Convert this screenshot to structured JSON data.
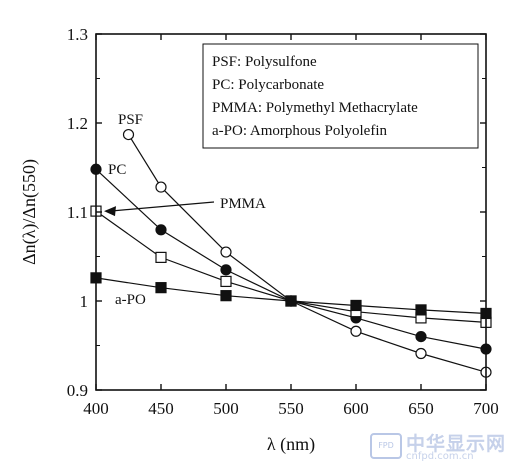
{
  "chart_data": {
    "type": "line",
    "xlabel": "λ (nm)",
    "ylabel": "Δn(λ)/Δn(550)",
    "xlim": [
      400,
      700
    ],
    "ylim": [
      0.9,
      1.3
    ],
    "x_ticks": [
      400,
      450,
      500,
      550,
      600,
      650,
      700
    ],
    "y_ticks": [
      0.9,
      1,
      1.1,
      1.2,
      1.3
    ],
    "x_tick_labels": [
      "400",
      "450",
      "500",
      "550",
      "600",
      "650",
      "700"
    ],
    "y_tick_labels": [
      "0.9",
      "1",
      "1.1",
      "1.2",
      "1.3"
    ],
    "grid": false,
    "legend": {
      "placement": "top-right",
      "entries": [
        "PSF: Polysulfone",
        "PC: Polycarbonate",
        "PMMA: Polymethyl Methacrylate",
        "a-PO: Amorphous Polyolefin"
      ]
    },
    "series": [
      {
        "name": "PSF",
        "marker": "open-circle",
        "x": [
          425,
          450,
          500,
          550,
          600,
          650,
          700
        ],
        "y": [
          1.187,
          1.128,
          1.055,
          1.0,
          0.966,
          0.941,
          0.92
        ]
      },
      {
        "name": "PC",
        "marker": "filled-circle",
        "x": [
          400,
          450,
          500,
          550,
          600,
          650,
          700
        ],
        "y": [
          1.148,
          1.08,
          1.035,
          1.0,
          0.981,
          0.96,
          0.946
        ]
      },
      {
        "name": "PMMA",
        "marker": "open-square",
        "x": [
          400,
          450,
          500,
          550,
          600,
          650,
          700
        ],
        "y": [
          1.101,
          1.049,
          1.022,
          1.0,
          0.988,
          0.981,
          0.976
        ]
      },
      {
        "name": "a-PO",
        "marker": "filled-square",
        "x": [
          400,
          450,
          500,
          550,
          600,
          650,
          700
        ],
        "y": [
          1.026,
          1.015,
          1.006,
          1.0,
          0.995,
          0.99,
          0.986
        ]
      }
    ],
    "annotations": [
      {
        "text": "PSF",
        "series": "PSF"
      },
      {
        "text": "PC",
        "series": "PC"
      },
      {
        "text": "PMMA",
        "series": "PMMA",
        "arrow_to": [
          400,
          1.101
        ]
      },
      {
        "text": "a-PO",
        "series": "a-PO"
      }
    ]
  },
  "watermark": {
    "logo_text": "FPD",
    "title": "中华显示网",
    "url": "cnfpd.com.cn"
  },
  "colors": {
    "ink": "#111111",
    "background": "#ffffff"
  }
}
